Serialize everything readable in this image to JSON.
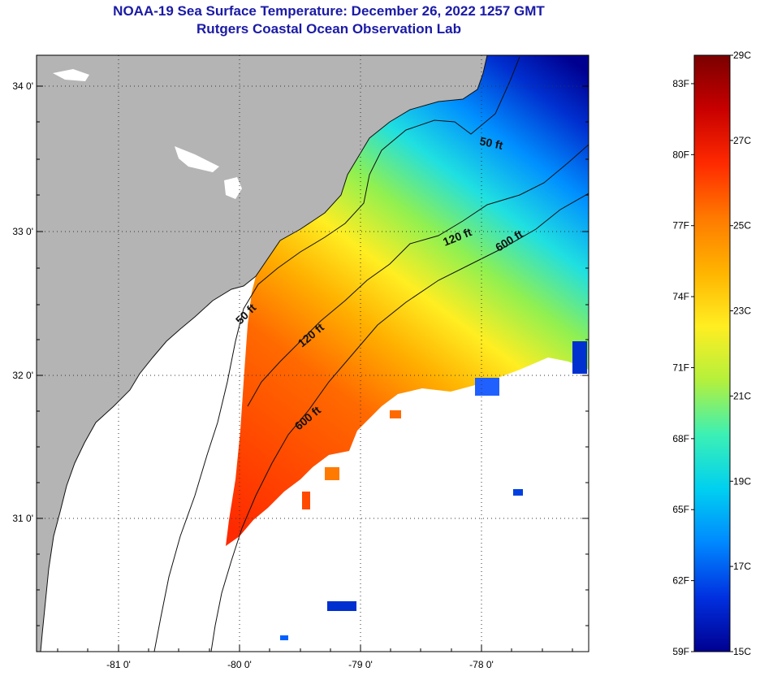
{
  "header": {
    "title": "NOAA-19 Sea Surface Temperature:  December 26, 2022 1257 GMT",
    "subtitle": "Rutgers Coastal Ocean Observation Lab"
  },
  "map": {
    "lat_labels": [
      "34 0'",
      "33 0'",
      "32 0'",
      "31 0'"
    ],
    "lon_labels": [
      "-81 0'",
      "-80 0'",
      "-79 0'",
      "-78 0'"
    ],
    "contours": [
      {
        "label": "50 ft",
        "id": "50"
      },
      {
        "label": "50 ft",
        "id": "50b"
      },
      {
        "label": "120 ft",
        "id": "120"
      },
      {
        "label": "120 ft",
        "id": "120b"
      },
      {
        "label": "600 ft",
        "id": "600"
      },
      {
        "label": "600 ft",
        "id": "600b"
      }
    ],
    "colors": {
      "land": "#b4b4b4",
      "no_data": "#ffffff"
    }
  },
  "colorbar": {
    "fahrenheit_labels": [
      "83F",
      "80F",
      "77F",
      "74F",
      "71F",
      "68F",
      "65F",
      "62F",
      "59F"
    ],
    "celsius_labels": [
      "29C",
      "27C",
      "25C",
      "23C",
      "21C",
      "19C",
      "17C",
      "15C"
    ],
    "range_c": [
      15,
      29
    ],
    "gradient": [
      "#7a0000",
      "#c80000",
      "#ff2a00",
      "#ff7a00",
      "#ffb400",
      "#ffee22",
      "#b4f03c",
      "#3cf0b4",
      "#00d0f0",
      "#0088ff",
      "#0030e0",
      "#000090"
    ]
  }
}
